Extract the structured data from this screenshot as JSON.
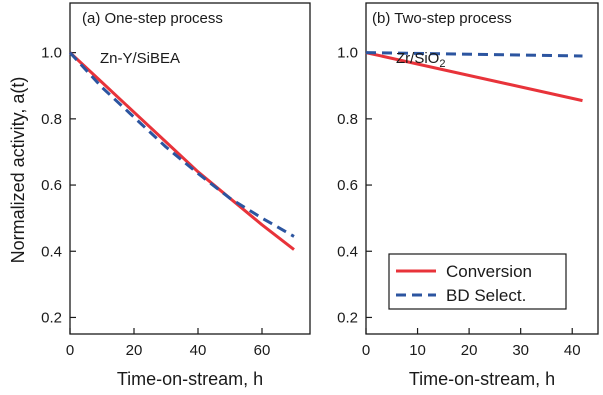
{
  "chart_data": [
    {
      "type": "line",
      "panel_label": "(a) One-step process",
      "catalyst": "Zn-Y/SiBEA",
      "xlabel": "Time-on-stream, h",
      "ylabel": "Normalized activity, a(t)",
      "xlim": [
        0,
        75
      ],
      "ylim": [
        0.15,
        1.15
      ],
      "xticks": [
        0,
        20,
        40,
        60
      ],
      "yticks": [
        0.2,
        0.4,
        0.6,
        0.8,
        1.0
      ],
      "grid": false,
      "series": [
        {
          "name": "Conversion",
          "style": "solid",
          "color": "#e8333a",
          "x": [
            0,
            10,
            20,
            30,
            40,
            50,
            60,
            70
          ],
          "y": [
            1.0,
            0.91,
            0.82,
            0.73,
            0.64,
            0.56,
            0.48,
            0.405
          ]
        },
        {
          "name": "BD Select.",
          "style": "dashed",
          "color": "#2c55a0",
          "x": [
            0,
            10,
            20,
            30,
            40,
            50,
            60,
            70
          ],
          "y": [
            1.0,
            0.895,
            0.805,
            0.715,
            0.635,
            0.56,
            0.5,
            0.445
          ]
        }
      ]
    },
    {
      "type": "line",
      "panel_label": "(b) Two-step process",
      "catalyst": "Zr/SiO",
      "catalyst_sub": "2",
      "xlabel": "Time-on-stream, h",
      "xlim": [
        0,
        45
      ],
      "ylim": [
        0.15,
        1.15
      ],
      "xticks": [
        0,
        10,
        20,
        30,
        40
      ],
      "yticks": [
        0.2,
        0.4,
        0.6,
        0.8,
        1.0
      ],
      "grid": false,
      "legend": {
        "placement": "lower-center",
        "entries": [
          "Conversion",
          "BD Select."
        ]
      },
      "series": [
        {
          "name": "Conversion",
          "style": "solid",
          "color": "#e8333a",
          "x": [
            0,
            42
          ],
          "y": [
            1.0,
            0.855
          ]
        },
        {
          "name": "BD Select.",
          "style": "dashed",
          "color": "#2c55a0",
          "x": [
            0,
            42
          ],
          "y": [
            1.0,
            0.99
          ]
        }
      ]
    }
  ]
}
